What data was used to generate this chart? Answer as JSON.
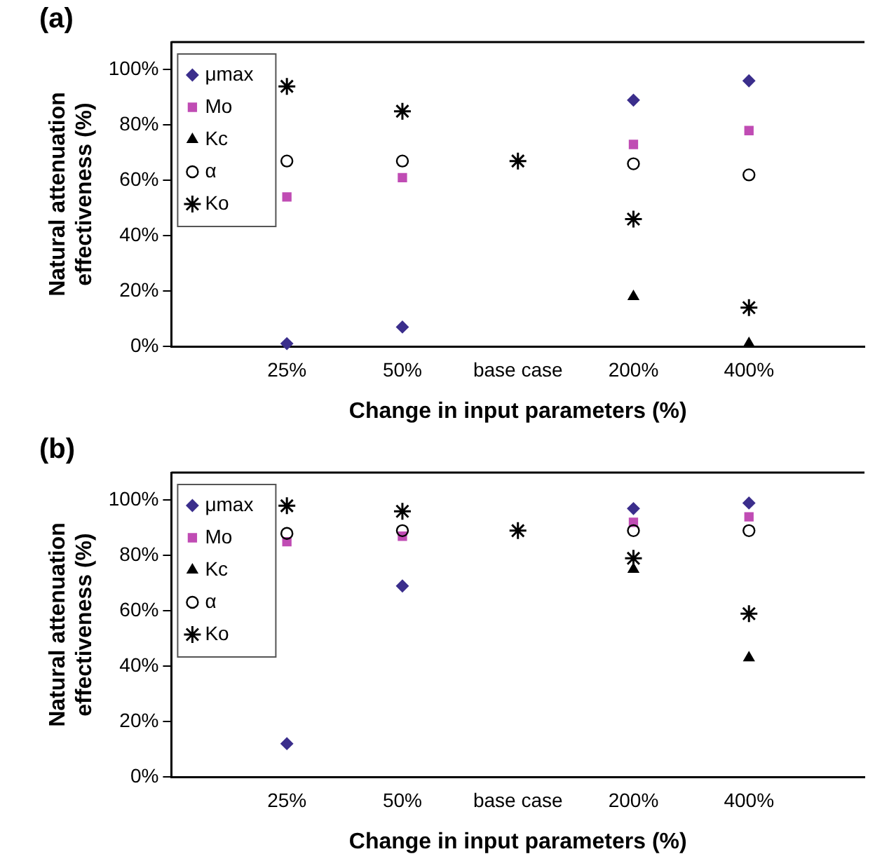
{
  "chart_data": [
    {
      "type": "scatter",
      "title": "(a)",
      "xlabel": "Change in input parameters (%)",
      "ylabel": "Natural attenuation effectiveness (%)",
      "categories": [
        "25%",
        "50%",
        "base case",
        "200%",
        "400%"
      ],
      "ylim": [
        0,
        110
      ],
      "yticks": [
        {
          "value": 0,
          "label": "0%"
        },
        {
          "value": 20,
          "label": "20%"
        },
        {
          "value": 40,
          "label": "40%"
        },
        {
          "value": 60,
          "label": "60%"
        },
        {
          "value": 80,
          "label": "80%"
        },
        {
          "value": 100,
          "label": "100%"
        }
      ],
      "grid": false,
      "legend": "top left",
      "series": [
        {
          "name": "μmax",
          "color": "#3b2e8c",
          "marker": "diamond",
          "values": [
            1,
            7,
            null,
            89,
            96
          ]
        },
        {
          "name": "Mo",
          "color": "#c04cb4",
          "marker": "square",
          "values": [
            54,
            61,
            null,
            73,
            78
          ]
        },
        {
          "name": "Kc",
          "color": "#000000",
          "marker": "triangle",
          "values": [
            null,
            null,
            null,
            18,
            1
          ]
        },
        {
          "name": "α",
          "color": "#000000",
          "marker": "circle",
          "values": [
            67,
            67,
            null,
            66,
            62
          ]
        },
        {
          "name": "Ko",
          "color": "#000000",
          "marker": "cross",
          "values": [
            94,
            85,
            67,
            46,
            14
          ]
        }
      ]
    },
    {
      "type": "scatter",
      "title": "(b)",
      "xlabel": "Change in input parameters (%)",
      "ylabel": "Natural attenuation effectiveness (%)",
      "categories": [
        "25%",
        "50%",
        "base case",
        "200%",
        "400%"
      ],
      "ylim": [
        0,
        110
      ],
      "yticks": [
        {
          "value": 0,
          "label": "0%"
        },
        {
          "value": 20,
          "label": "20%"
        },
        {
          "value": 40,
          "label": "40%"
        },
        {
          "value": 60,
          "label": "60%"
        },
        {
          "value": 80,
          "label": "80%"
        },
        {
          "value": 100,
          "label": "100%"
        }
      ],
      "grid": false,
      "legend": "top left",
      "series": [
        {
          "name": "μmax",
          "color": "#3b2e8c",
          "marker": "diamond",
          "values": [
            12,
            69,
            null,
            97,
            99
          ]
        },
        {
          "name": "Mo",
          "color": "#c04cb4",
          "marker": "square",
          "values": [
            85,
            87,
            null,
            92,
            94
          ]
        },
        {
          "name": "Kc",
          "color": "#000000",
          "marker": "triangle",
          "values": [
            null,
            null,
            null,
            75,
            43
          ]
        },
        {
          "name": "α",
          "color": "#000000",
          "marker": "circle",
          "values": [
            88,
            89,
            null,
            89,
            89
          ]
        },
        {
          "name": "Ko",
          "color": "#000000",
          "marker": "cross",
          "values": [
            98,
            96,
            89,
            79,
            59
          ]
        }
      ]
    }
  ]
}
